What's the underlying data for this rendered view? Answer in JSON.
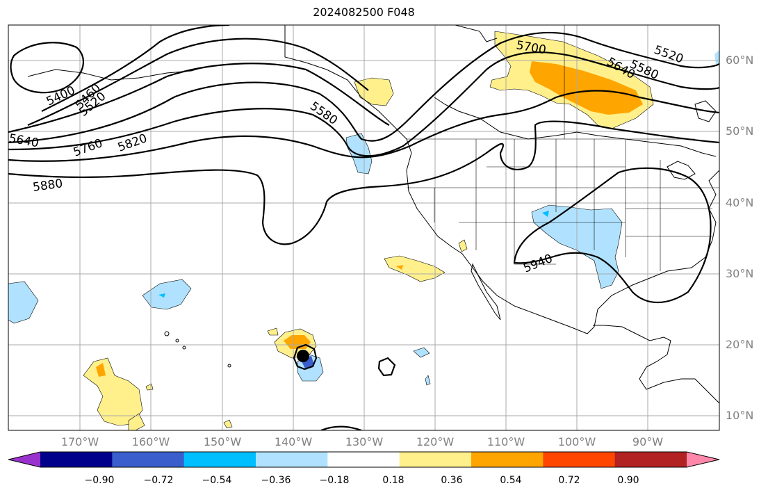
{
  "title": "2024082500 F048",
  "latitude_labels": [
    "60°N",
    "50°N",
    "40°N",
    "30°N",
    "20°N",
    "10°N"
  ],
  "longitude_labels": [
    "170°W",
    "160°W",
    "150°W",
    "140°W",
    "130°W",
    "120°W",
    "110°W",
    "100°W",
    "90°W"
  ],
  "contour_labels": [
    "5400",
    "5460",
    "5520",
    "5580",
    "5640",
    "5700",
    "5760",
    "5820",
    "5880",
    "5940",
    "5640",
    "5580",
    "5520"
  ],
  "colorbar": {
    "ticks": [
      "−0.90",
      "−0.72",
      "−0.54",
      "−0.36",
      "−0.18",
      "0.18",
      "0.36",
      "0.54",
      "0.72",
      "0.90"
    ],
    "colors": [
      "#9932cc",
      "#00008b",
      "#3a5fcd",
      "#00bfff",
      "#b0e2ff",
      "#ffffff",
      "#fff08c",
      "#ffa500",
      "#ff4500",
      "#b22222",
      "#ff88aa"
    ]
  }
}
